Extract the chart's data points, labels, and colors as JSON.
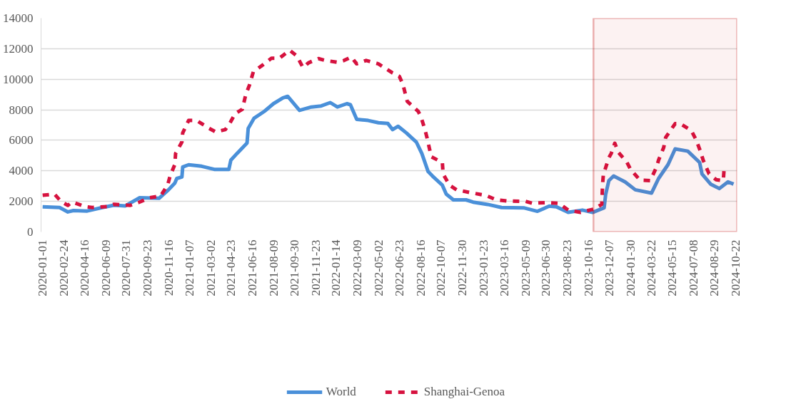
{
  "chart_data": {
    "type": "line",
    "xlim": [
      "2019-12-28",
      "2024-10-26"
    ],
    "ylim": [
      0,
      14000
    ],
    "yticks": [
      0,
      2000,
      4000,
      6000,
      8000,
      10000,
      12000,
      14000
    ],
    "xticks": [
      "2020-01-01",
      "2020-02-24",
      "2020-04-16",
      "2020-06-09",
      "2020-07-31",
      "2020-09-23",
      "2020-11-16",
      "2021-01-07",
      "2021-03-02",
      "2021-04-23",
      "2021-06-16",
      "2021-08-09",
      "2021-09-30",
      "2021-11-23",
      "2022-01-14",
      "2022-03-09",
      "2022-05-02",
      "2022-06-23",
      "2022-08-16",
      "2022-10-07",
      "2022-11-30",
      "2023-01-23",
      "2023-03-16",
      "2023-05-09",
      "2023-06-30",
      "2023-08-23",
      "2023-10-16",
      "2023-12-07",
      "2024-01-30",
      "2024-03-22",
      "2024-05-15",
      "2024-07-08",
      "2024-08-29",
      "2024-10-22"
    ],
    "grid": "y",
    "legend": "bottom",
    "bands": [
      {
        "axis": "x",
        "from": "2023-10-28",
        "to": "2024-10-26",
        "color": "#c00000"
      }
    ],
    "series": [
      {
        "name": "World",
        "color": "#4a90d9",
        "line_style": "solid",
        "x": [
          "2020-01-01",
          "2020-02-13",
          "2020-03-05",
          "2020-03-19",
          "2020-04-23",
          "2020-05-31",
          "2020-06-30",
          "2020-07-28",
          "2020-09-03",
          "2020-10-22",
          "2020-11-15",
          "2020-12-01",
          "2020-12-06",
          "2020-12-19",
          "2020-12-21",
          "2021-01-05",
          "2021-02-07",
          "2021-03-11",
          "2021-04-17",
          "2021-04-22",
          "2021-05-08",
          "2021-06-02",
          "2021-06-05",
          "2021-06-20",
          "2021-07-16",
          "2021-08-08",
          "2021-09-01",
          "2021-09-13",
          "2021-10-13",
          "2021-11-12",
          "2021-12-07",
          "2021-12-30",
          "2022-01-17",
          "2022-02-10",
          "2022-02-19",
          "2022-03-07",
          "2022-04-05",
          "2022-05-01",
          "2022-05-25",
          "2022-06-06",
          "2022-06-20",
          "2022-07-11",
          "2022-08-05",
          "2022-08-19",
          "2022-09-04",
          "2022-09-15",
          "2022-10-10",
          "2022-10-20",
          "2022-11-07",
          "2022-12-09",
          "2022-12-27",
          "2023-02-02",
          "2023-03-09",
          "2023-05-04",
          "2023-06-08",
          "2023-07-08",
          "2023-07-26",
          "2023-08-25",
          "2023-09-30",
          "2023-10-26",
          "2023-11-24",
          "2023-11-28",
          "2023-12-06",
          "2023-12-18",
          "2024-01-16",
          "2024-02-11",
          "2024-03-23",
          "2024-04-10",
          "2024-05-04",
          "2024-05-22",
          "2024-06-23",
          "2024-07-23",
          "2024-07-29",
          "2024-08-20",
          "2024-09-11",
          "2024-10-03",
          "2024-10-17"
        ],
        "values": [
          1650,
          1600,
          1310,
          1400,
          1370,
          1600,
          1750,
          1700,
          2240,
          2200,
          2760,
          3200,
          3500,
          3600,
          4250,
          4400,
          4300,
          4100,
          4100,
          4700,
          5150,
          5820,
          6780,
          7450,
          7900,
          8400,
          8780,
          8880,
          7960,
          8180,
          8250,
          8470,
          8180,
          8400,
          8330,
          7370,
          7300,
          7150,
          7100,
          6700,
          6920,
          6480,
          5890,
          5140,
          3950,
          3660,
          3060,
          2470,
          2100,
          2100,
          1950,
          1800,
          1600,
          1580,
          1350,
          1690,
          1650,
          1280,
          1430,
          1280,
          1580,
          2470,
          3360,
          3660,
          3280,
          2760,
          2540,
          3500,
          4410,
          5440,
          5290,
          4550,
          3800,
          3130,
          2840,
          3280,
          3130
        ]
      },
      {
        "name": "Shanghai-Genoa",
        "color": "#d6123f",
        "line_style": "dashed",
        "x": [
          "2020-01-01",
          "2020-01-31",
          "2020-02-18",
          "2020-03-05",
          "2020-03-16",
          "2020-04-18",
          "2020-05-06",
          "2020-06-12",
          "2020-06-30",
          "2020-08-10",
          "2020-09-03",
          "2020-09-28",
          "2020-10-26",
          "2020-11-13",
          "2020-11-19",
          "2020-12-01",
          "2020-12-03",
          "2020-12-19",
          "2020-12-21",
          "2021-01-05",
          "2021-01-25",
          "2021-02-26",
          "2021-03-15",
          "2021-04-08",
          "2021-04-20",
          "2021-05-03",
          "2021-05-21",
          "2021-05-30",
          "2021-06-08",
          "2021-06-18",
          "2021-07-08",
          "2021-08-03",
          "2021-08-23",
          "2021-09-18",
          "2021-10-06",
          "2021-10-22",
          "2021-11-05",
          "2021-11-30",
          "2021-12-18",
          "2022-01-17",
          "2022-02-03",
          "2022-02-21",
          "2022-03-07",
          "2022-03-31",
          "2022-05-01",
          "2022-05-19",
          "2022-06-06",
          "2022-06-23",
          "2022-07-02",
          "2022-07-13",
          "2022-08-10",
          "2022-08-17",
          "2022-08-26",
          "2022-09-01",
          "2022-09-12",
          "2022-10-10",
          "2022-10-12",
          "2022-10-28",
          "2022-11-15",
          "2022-12-27",
          "2023-01-27",
          "2023-02-24",
          "2023-03-22",
          "2023-05-09",
          "2023-05-26",
          "2023-07-01",
          "2023-08-01",
          "2023-08-25",
          "2023-09-25",
          "2023-10-31",
          "2023-11-18",
          "2023-11-20",
          "2023-11-22",
          "2023-12-06",
          "2023-12-12",
          "2023-12-21",
          "2023-12-30",
          "2024-01-21",
          "2024-01-30",
          "2024-02-23",
          "2024-03-20",
          "2024-04-05",
          "2024-04-10",
          "2024-04-23",
          "2024-04-28",
          "2024-05-22",
          "2024-06-04",
          "2024-07-02",
          "2024-07-14",
          "2024-07-25",
          "2024-08-01",
          "2024-08-16",
          "2024-09-03",
          "2024-09-21",
          "2024-09-23"
        ],
        "values": [
          2400,
          2480,
          1960,
          1740,
          1960,
          1660,
          1600,
          1660,
          1810,
          1740,
          1960,
          2240,
          2360,
          3080,
          3660,
          4410,
          5140,
          5890,
          6480,
          7300,
          7300,
          6780,
          6550,
          6700,
          7150,
          7740,
          8030,
          9010,
          9600,
          10490,
          10860,
          11380,
          11380,
          11900,
          11530,
          10760,
          11080,
          11350,
          11230,
          11110,
          11230,
          11460,
          11010,
          11230,
          11010,
          10710,
          10410,
          10190,
          9670,
          8560,
          7890,
          7520,
          6780,
          6190,
          4920,
          4550,
          3800,
          3060,
          2760,
          2540,
          2400,
          2100,
          2030,
          2000,
          1880,
          1920,
          1880,
          1430,
          1280,
          1510,
          1810,
          3080,
          3740,
          4860,
          5140,
          5810,
          5220,
          4550,
          4100,
          3390,
          3360,
          4260,
          4700,
          5530,
          6190,
          7090,
          7090,
          6640,
          6040,
          5290,
          4700,
          3800,
          3420,
          3360,
          4100
        ]
      }
    ]
  }
}
